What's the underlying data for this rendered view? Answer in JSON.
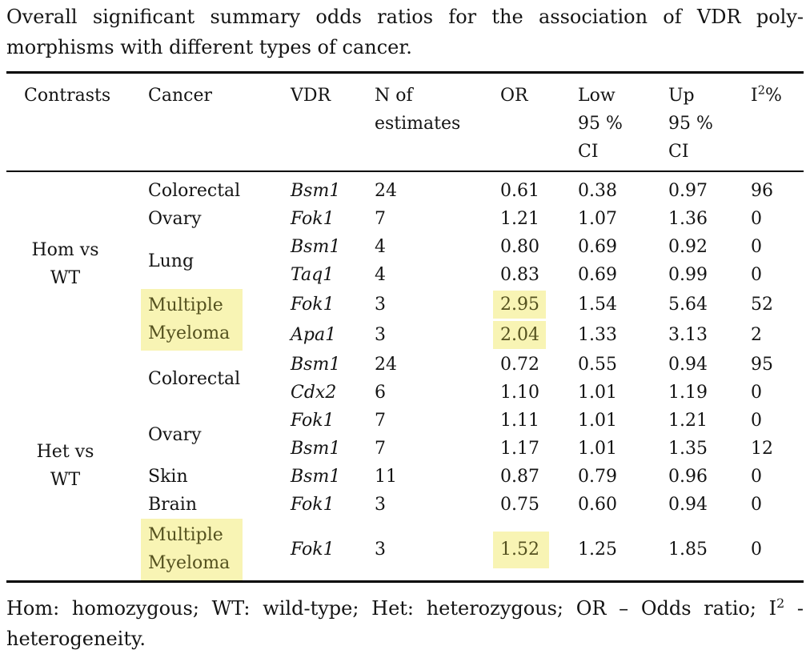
{
  "theme": {
    "highlight": "#f8f4b4",
    "highlight_text": "#54511f",
    "rule": "#000000",
    "text": "#141414"
  },
  "title": {
    "line1": "Overall significant summary odds ratios for the association of VDR poly-",
    "line2": "morphisms with different types of cancer."
  },
  "table": {
    "headers": {
      "contrasts": "Contrasts",
      "cancer": "Cancer",
      "vdr": "VDR",
      "n": "N of\nestimates",
      "or": "OR",
      "low": "Low\n95 %\nCI",
      "up": "Up\n95 %\nCI",
      "i2_base": "I",
      "i2_sup": "2",
      "i2_unit": "%"
    },
    "groups": {
      "hom": "Hom vs\nWT",
      "het": "Het vs\nWT"
    },
    "rows": [
      {
        "cancer": "Colorectal",
        "vdr": "Bsm1",
        "n": "24",
        "or": "0.61",
        "low": "0.38",
        "up": "0.97",
        "i2": "96"
      },
      {
        "cancer": "Ovary",
        "vdr": "Fok1",
        "n": "7",
        "or": "1.21",
        "low": "1.07",
        "up": "1.36",
        "i2": "0"
      },
      {
        "cancer": "Lung",
        "vdr": "Bsm1",
        "n": "4",
        "or": "0.80",
        "low": "0.69",
        "up": "0.92",
        "i2": "0"
      },
      {
        "cancer": "",
        "vdr": "Taq1",
        "n": "4",
        "or": "0.83",
        "low": "0.69",
        "up": "0.99",
        "i2": "0"
      },
      {
        "cancer": "Multiple\nMyeloma",
        "vdr": "Fok1",
        "n": "3",
        "or": "2.95",
        "low": "1.54",
        "up": "5.64",
        "i2": "52"
      },
      {
        "cancer": "",
        "vdr": "Apa1",
        "n": "3",
        "or": "2.04",
        "low": "1.33",
        "up": "3.13",
        "i2": "2"
      },
      {
        "cancer": "Colorectal",
        "vdr": "Bsm1",
        "n": "24",
        "or": "0.72",
        "low": "0.55",
        "up": "0.94",
        "i2": "95"
      },
      {
        "cancer": "",
        "vdr": "Cdx2",
        "n": "6",
        "or": "1.10",
        "low": "1.01",
        "up": "1.19",
        "i2": "0"
      },
      {
        "cancer": "Ovary",
        "vdr": "Fok1",
        "n": "7",
        "or": "1.11",
        "low": "1.01",
        "up": "1.21",
        "i2": "0"
      },
      {
        "cancer": "",
        "vdr": "Bsm1",
        "n": "7",
        "or": "1.17",
        "low": "1.01",
        "up": "1.35",
        "i2": "12"
      },
      {
        "cancer": "Skin",
        "vdr": "Bsm1",
        "n": "11",
        "or": "0.87",
        "low": "0.79",
        "up": "0.96",
        "i2": "0"
      },
      {
        "cancer": "Brain",
        "vdr": "Fok1",
        "n": "3",
        "or": "0.75",
        "low": "0.60",
        "up": "0.94",
        "i2": "0"
      },
      {
        "cancer": "Multiple\nMyeloma",
        "vdr": "Fok1",
        "n": "3",
        "or": "1.52",
        "low": "1.25",
        "up": "1.85",
        "i2": "0"
      }
    ]
  },
  "footnote": {
    "line1_pre": "Hom: homozygous; WT: wild-type; Het: heterozygous; OR – Odds ratio; I",
    "line1_sup": "2",
    "line1_end": " -",
    "line2": "heterogeneity."
  }
}
